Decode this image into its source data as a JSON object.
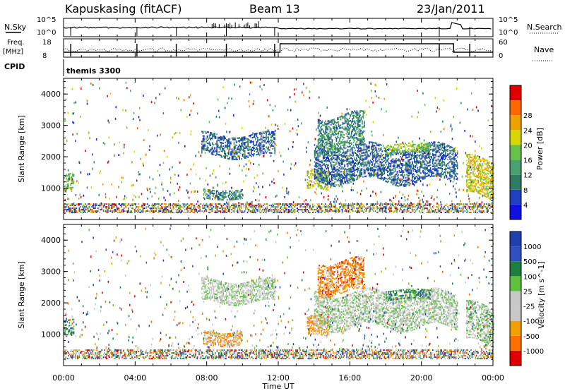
{
  "header": {
    "station": "Kapuskasing (fitACF)",
    "beam": "Beam 13",
    "date": "23/Jan/2011"
  },
  "top_panels": {
    "nsky_label": "N.Sky",
    "nsearch_label": "N.Search",
    "nsky_ticks": [
      "10^5",
      "10^0"
    ],
    "nsearch_ticks": [
      "10^5",
      "10^0"
    ],
    "freq_label": "Freq.",
    "freq_unit": "[MHz]",
    "freq_ticks": [
      "18",
      "8"
    ],
    "nave_label": "Nave",
    "nave_ticks": [
      "60",
      "0"
    ],
    "cpid_label": "CPID",
    "cpid_name": "themis 3300"
  },
  "colors": {
    "power_scale": [
      "#1010e0",
      "#2040c0",
      "#2e7d63",
      "#4aa070",
      "#66c24a",
      "#d8d800",
      "#f0a000",
      "#ff6a00",
      "#e00000"
    ],
    "velocity_scale": [
      "#2040b0",
      "#3050c0",
      "#1e8040",
      "#60c040",
      "#c8c8c8",
      "#c8c8c8",
      "#f0a000",
      "#ff7000",
      "#e00000"
    ]
  },
  "chart_data": [
    {
      "type": "heatmap",
      "name": "power",
      "ylabel": "Slant Range [km]",
      "ylim": [
        0,
        4500
      ],
      "yticks": [
        1000,
        2000,
        3000,
        4000
      ],
      "colorbar_label": "Power [dB]",
      "colorbar_ticks": [
        "4",
        "8",
        "12",
        "16",
        "20",
        "24",
        "28"
      ],
      "xlim": [
        0,
        24
      ],
      "features": [
        {
          "t0": 0.0,
          "t1": 0.6,
          "r0": 900,
          "r1": 1400,
          "level": 0.45
        },
        {
          "t0": 7.7,
          "t1": 11.8,
          "r0": 2000,
          "r1": 2700,
          "level": 0.2
        },
        {
          "t0": 7.8,
          "t1": 10.0,
          "r0": 650,
          "r1": 950,
          "level": 0.3
        },
        {
          "t0": 13.6,
          "t1": 14.8,
          "r0": 900,
          "r1": 1500,
          "level": 0.6
        },
        {
          "t0": 14.0,
          "t1": 22.0,
          "r0": 1200,
          "r1": 2300,
          "level": 0.2
        },
        {
          "t0": 14.2,
          "t1": 16.8,
          "r0": 2200,
          "r1": 3300,
          "level": 0.3
        },
        {
          "t0": 18.0,
          "t1": 20.5,
          "r0": 2100,
          "r1": 2400,
          "level": 0.5
        },
        {
          "t0": 22.5,
          "t1": 24.0,
          "r0": 700,
          "r1": 1900,
          "level": 0.65
        }
      ]
    },
    {
      "type": "heatmap",
      "name": "velocity",
      "xlabel": "Time UT",
      "ylabel": "Slant Range [km]",
      "ylim": [
        0,
        4500
      ],
      "yticks": [
        1000,
        2000,
        3000,
        4000
      ],
      "colorbar_label": "Velocity  [m s^-1]",
      "colorbar_ticks": [
        "1000",
        "500",
        "100",
        "25",
        "-25",
        "-100",
        "-500",
        "-1000"
      ],
      "xlim": [
        0,
        24
      ],
      "xticks": [
        "00:00",
        "04:00",
        "08:00",
        "12:00",
        "16:00",
        "20:00",
        "00:00"
      ],
      "features": [
        {
          "t0": 0.0,
          "t1": 0.6,
          "r0": 900,
          "r1": 1400,
          "level": 0.3
        },
        {
          "t0": 7.7,
          "t1": 11.8,
          "r0": 2000,
          "r1": 2700,
          "level": 0.5
        },
        {
          "t0": 7.8,
          "t1": 10.0,
          "r0": 650,
          "r1": 1100,
          "level": 0.75
        },
        {
          "t0": 13.6,
          "t1": 14.8,
          "r0": 900,
          "r1": 1500,
          "level": 0.75
        },
        {
          "t0": 14.0,
          "t1": 22.0,
          "r0": 1200,
          "r1": 2300,
          "level": 0.5
        },
        {
          "t0": 14.2,
          "t1": 16.8,
          "r0": 2300,
          "r1": 3300,
          "level": 0.8
        },
        {
          "t0": 18.0,
          "t1": 20.5,
          "r0": 2100,
          "r1": 2400,
          "level": 0.3
        },
        {
          "t0": 22.5,
          "t1": 24.0,
          "r0": 700,
          "r1": 1900,
          "level": 0.45
        }
      ]
    }
  ]
}
